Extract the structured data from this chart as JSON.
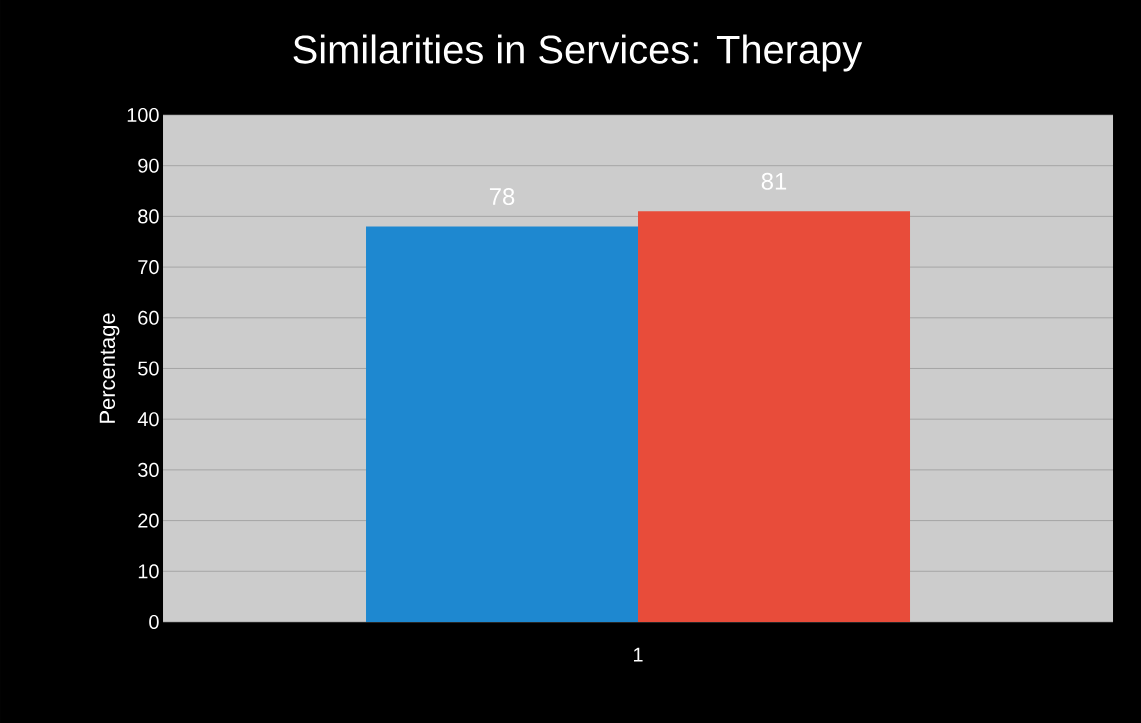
{
  "chart_data": {
    "type": "bar",
    "title": "Similarities in Services: Therapy",
    "ylabel": "Percentage",
    "categories": [
      "1"
    ],
    "series": [
      {
        "color": "#1e88d0",
        "values": [
          78
        ]
      },
      {
        "color": "#e84c3a",
        "values": [
          81
        ]
      }
    ],
    "ylim": [
      0,
      100
    ],
    "yticks": [
      0,
      10,
      20,
      30,
      40,
      50,
      60,
      70,
      80,
      90,
      100
    ],
    "grid": "y",
    "data_labels": true
  }
}
